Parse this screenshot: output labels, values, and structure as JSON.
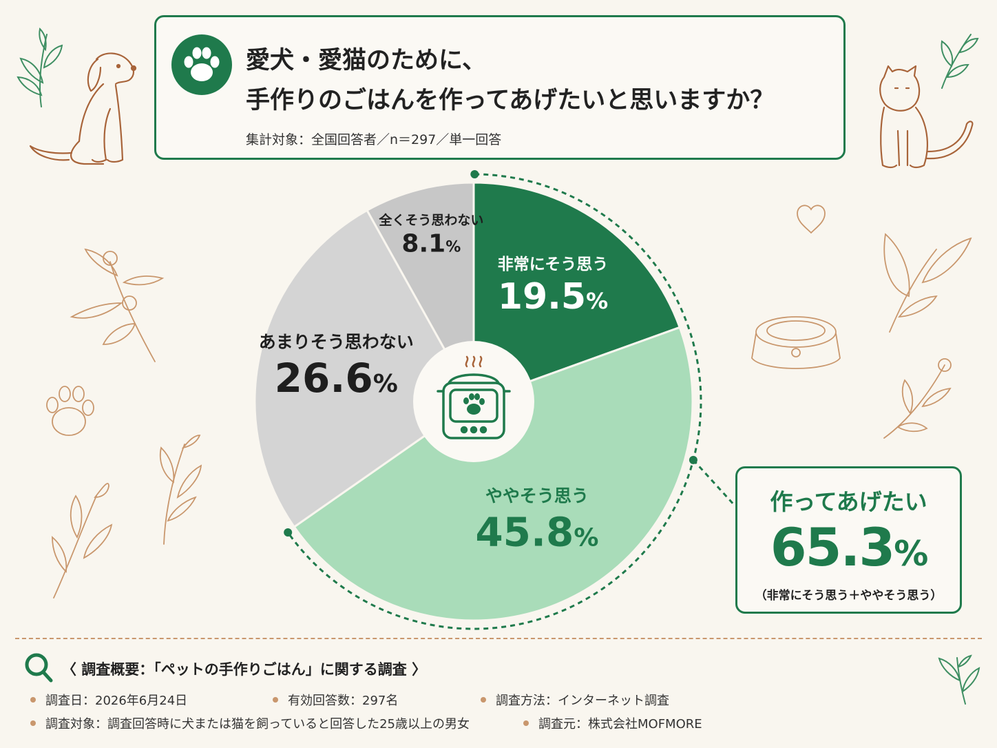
{
  "title": {
    "line1": "愛犬・愛猫のために、",
    "line2": "手作りのごはんを作ってあげたいと思いますか？",
    "subtitle": "集計対象：全国回答者／n＝297／単一回答"
  },
  "icons": [
    "paw-icon",
    "dog-illustration",
    "cat-illustration",
    "rice-cooker-icon",
    "pet-bowl-illustration",
    "heart-icon",
    "leaf-illustration",
    "search-icon"
  ],
  "colors": {
    "dark_green": "#1f7a4c",
    "light_green": "#a9dcb9",
    "gray": "#d4d4d4",
    "gray_dark": "#c7c7c7",
    "accent_brown": "#c9976d",
    "background": "#f9f6ef"
  },
  "chart_data": {
    "type": "pie",
    "categories": [
      "非常にそう思う",
      "ややそう思う",
      "あまりそう思わない",
      "全くそう思わない"
    ],
    "values": [
      19.5,
      45.8,
      26.6,
      8.1
    ],
    "value_labels": [
      "19.5",
      "45.8",
      "26.6",
      "8.1"
    ],
    "unit": "%",
    "start": "12 o'clock, clockwise"
  },
  "callout": {
    "title": "作ってあげたい",
    "value": "65.3",
    "unit": "%",
    "note": "（非常にそう思う＋ややそう思う）"
  },
  "overview": {
    "title": "〈 調査概要：「ペットの手作りごはん」に関する調査 〉",
    "items": [
      "調査日：2026年6月24日",
      "有効回答数：297名",
      "調査方法：インターネット調査",
      "調査対象：調査回答時に犬または猫を飼っていると回答した25歳以上の男女",
      "調査元：株式会社MOFMORE"
    ]
  }
}
